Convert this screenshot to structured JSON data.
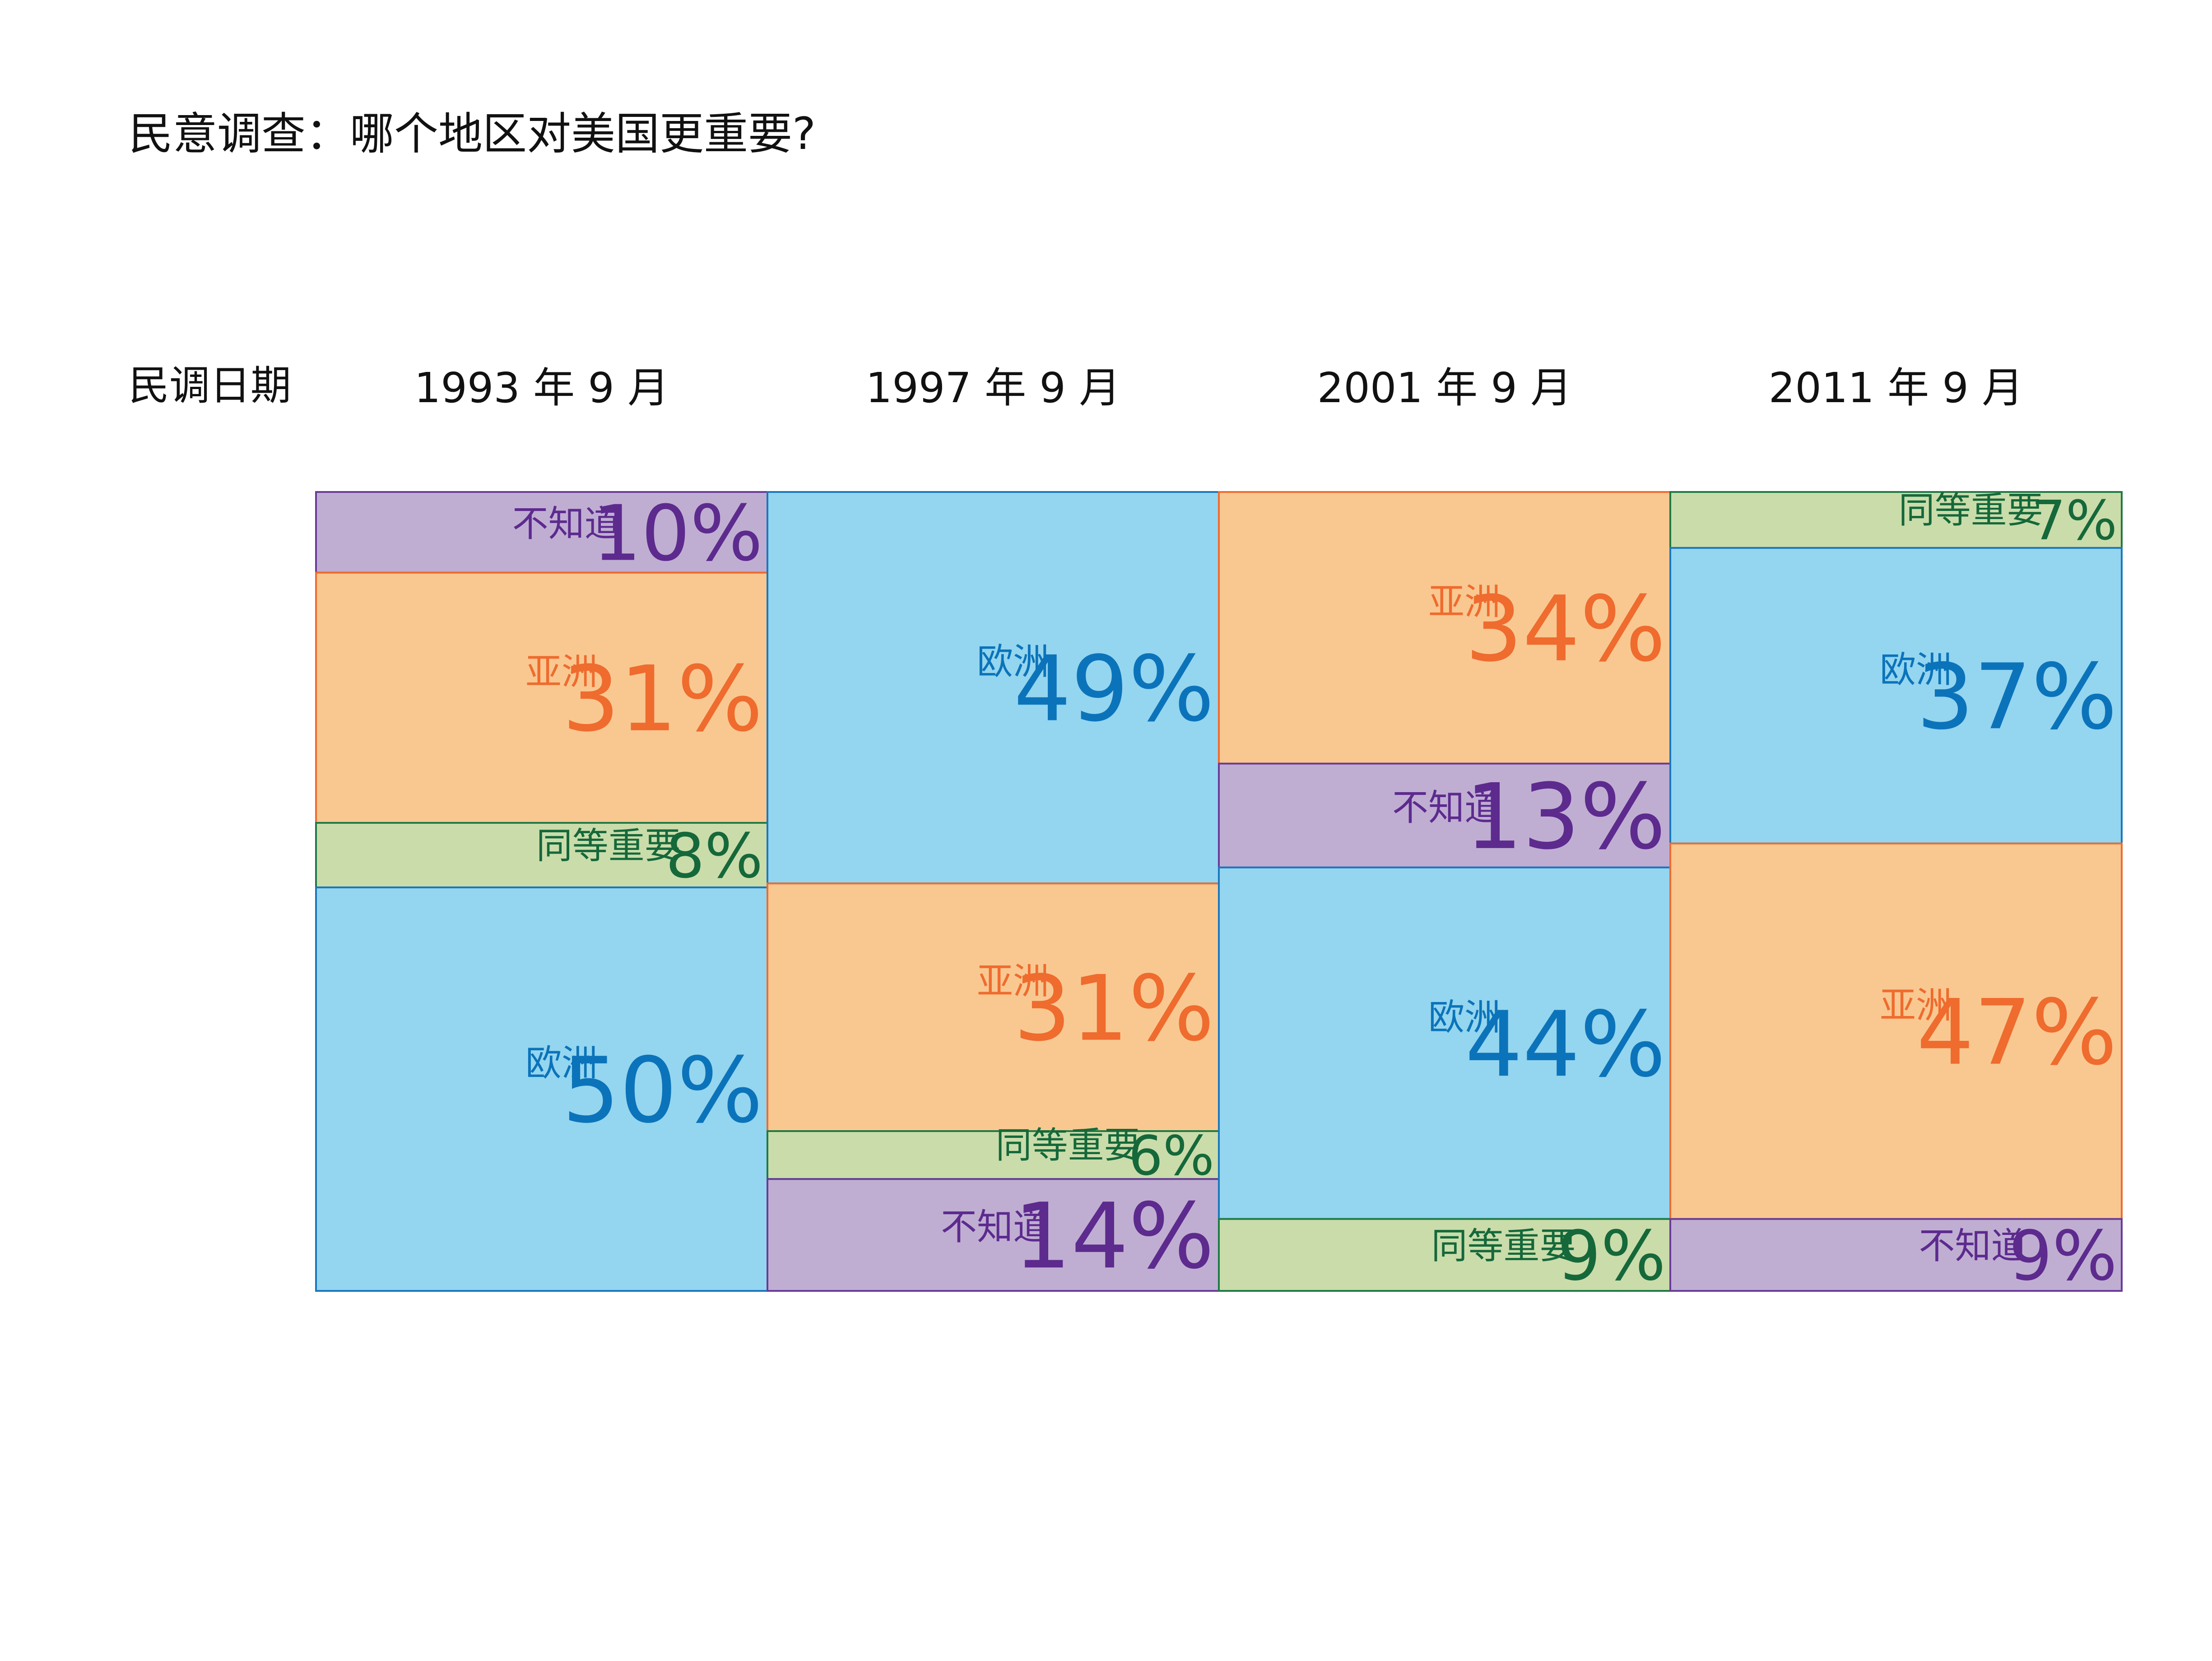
{
  "chart_data": {
    "type": "stacked-bar",
    "title": "民意调查：哪个地区对美国更重要?",
    "xlabel": "民调日期",
    "ylim": [
      0,
      100
    ],
    "grid": false,
    "colors": {
      "亚洲": {
        "fill": "#f9c891",
        "text": "#ef6b2e",
        "stroke": "#ef6b2e"
      },
      "欧洲": {
        "fill": "#94d5ef",
        "text": "#0b73ba",
        "stroke": "#1a78bd"
      },
      "同等重要": {
        "fill": "#cadcaa",
        "text": "#15683a",
        "stroke": "#1f7a44"
      },
      "不知道": {
        "fill": "#bfaed2",
        "text": "#5d2a8e",
        "stroke": "#6a3b98"
      }
    },
    "columns": [
      {
        "date": "1993 年 9 月",
        "segments": [
          {
            "name": "不知道",
            "value": 10,
            "label": "10%"
          },
          {
            "name": "亚洲",
            "value": 31,
            "label": "31%"
          },
          {
            "name": "同等重要",
            "value": 8,
            "label": "8%"
          },
          {
            "name": "欧洲",
            "value": 50,
            "label": "50%"
          }
        ]
      },
      {
        "date": "1997 年 9 月",
        "segments": [
          {
            "name": "欧洲",
            "value": 49,
            "label": "49%"
          },
          {
            "name": "亚洲",
            "value": 31,
            "label": "31%"
          },
          {
            "name": "同等重要",
            "value": 6,
            "label": "6%"
          },
          {
            "name": "不知道",
            "value": 14,
            "label": "14%"
          }
        ]
      },
      {
        "date": "2001 年 9 月",
        "segments": [
          {
            "name": "亚洲",
            "value": 34,
            "label": "34%"
          },
          {
            "name": "不知道",
            "value": 13,
            "label": "13%"
          },
          {
            "name": "欧洲",
            "value": 44,
            "label": "44%"
          },
          {
            "name": "同等重要",
            "value": 9,
            "label": "9%"
          }
        ]
      },
      {
        "date": "2011 年 9 月",
        "segments": [
          {
            "name": "同等重要",
            "value": 7,
            "label": "7%"
          },
          {
            "name": "欧洲",
            "value": 37,
            "label": "37%"
          },
          {
            "name": "亚洲",
            "value": 47,
            "label": "47%"
          },
          {
            "name": "不知道",
            "value": 9,
            "label": "9%"
          }
        ]
      }
    ]
  }
}
